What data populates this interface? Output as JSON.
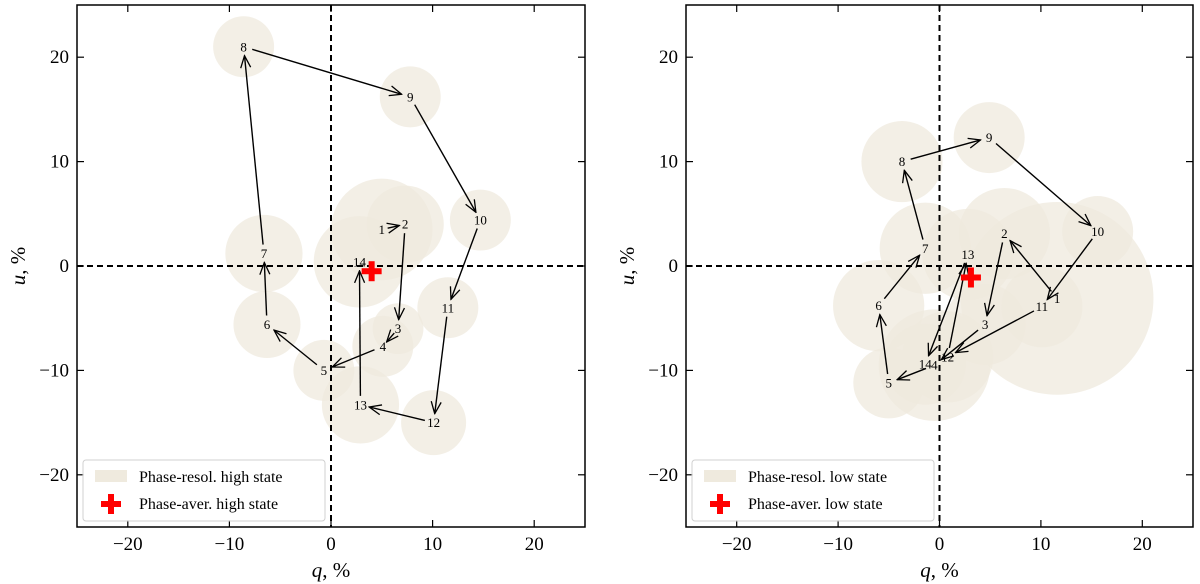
{
  "chart_data": [
    {
      "type": "scatter",
      "xlabel": "q, %",
      "ylabel": "u, %",
      "xlim": [
        -25,
        25
      ],
      "ylim": [
        -25,
        25
      ],
      "xticks": [
        -20,
        -10,
        0,
        10,
        20
      ],
      "yticks": [
        -20,
        -10,
        0,
        10,
        20
      ],
      "reference_lines": [
        "q = 0",
        "u = 0"
      ],
      "legend": {
        "placement": "bottom-left",
        "entries": [
          "Phase-resol. high state",
          "Phase-aver. high state"
        ]
      },
      "series": [
        {
          "name": "Phase-resol. high state",
          "points": [
            {
              "label": "1",
              "q": 5.0,
              "u": 3.5,
              "err": 5.0
            },
            {
              "label": "2",
              "q": 7.3,
              "u": 4.0,
              "err": 3.8
            },
            {
              "label": "3",
              "q": 6.6,
              "u": -6.0,
              "err": 2.5
            },
            {
              "label": "4",
              "q": 5.1,
              "u": -7.7,
              "err": 3.0
            },
            {
              "label": "5",
              "q": -0.7,
              "u": -10.0,
              "err": 3.0
            },
            {
              "label": "6",
              "q": -6.3,
              "u": -5.6,
              "err": 3.3
            },
            {
              "label": "7",
              "q": -6.6,
              "u": 1.2,
              "err": 3.8
            },
            {
              "label": "8",
              "q": -8.6,
              "u": 21.0,
              "err": 3.0
            },
            {
              "label": "9",
              "q": 7.8,
              "u": 16.2,
              "err": 3.0
            },
            {
              "label": "10",
              "q": 14.7,
              "u": 4.4,
              "err": 3.0
            },
            {
              "label": "11",
              "q": 11.5,
              "u": -4.0,
              "err": 3.0
            },
            {
              "label": "12",
              "q": 10.1,
              "u": -15.0,
              "err": 3.2
            },
            {
              "label": "13",
              "q": 2.9,
              "u": -13.3,
              "err": 3.8
            },
            {
              "label": "14",
              "q": 2.8,
              "u": 0.4,
              "err": 4.5
            }
          ]
        },
        {
          "name": "Phase-aver. high state",
          "points": [
            {
              "q": 4.0,
              "u": -0.5
            }
          ]
        }
      ]
    },
    {
      "type": "scatter",
      "xlabel": "q, %",
      "ylabel": "u, %",
      "xlim": [
        -25,
        25
      ],
      "ylim": [
        -25,
        25
      ],
      "xticks": [
        -20,
        -10,
        0,
        10,
        20
      ],
      "yticks": [
        -20,
        -10,
        0,
        10,
        20
      ],
      "reference_lines": [
        "q = 0",
        "u = 0"
      ],
      "legend": {
        "placement": "bottom-left",
        "entries": [
          "Phase-resol. low state",
          "Phase-aver. low state"
        ]
      },
      "series": [
        {
          "name": "Phase-resol. low state",
          "points": [
            {
              "label": "1",
              "q": 11.6,
              "u": -3.1,
              "err": 9.5
            },
            {
              "label": "2",
              "q": 6.4,
              "u": 3.1,
              "err": 4.5
            },
            {
              "label": "3",
              "q": 4.5,
              "u": -5.6,
              "err": 4.0
            },
            {
              "label": "4",
              "q": -0.5,
              "u": -9.5,
              "err": 5.5
            },
            {
              "label": "5",
              "q": -5.0,
              "u": -11.2,
              "err": 3.5
            },
            {
              "label": "6",
              "q": -6.0,
              "u": -3.8,
              "err": 4.5
            },
            {
              "label": "7",
              "q": -1.4,
              "u": 1.7,
              "err": 4.5
            },
            {
              "label": "8",
              "q": -3.7,
              "u": 10.0,
              "err": 4.0
            },
            {
              "label": "9",
              "q": 4.9,
              "u": 12.3,
              "err": 3.5
            },
            {
              "label": "10",
              "q": 15.6,
              "u": 3.3,
              "err": 3.5
            },
            {
              "label": "11",
              "q": 10.1,
              "u": -3.9,
              "err": 4.0
            },
            {
              "label": "12",
              "q": 0.8,
              "u": -8.7,
              "err": 4.5
            },
            {
              "label": "13",
              "q": 2.8,
              "u": 1.1,
              "err": 4.5
            },
            {
              "label": "14",
              "q": -1.4,
              "u": -9.4,
              "err": 4.0
            }
          ]
        },
        {
          "name": "Phase-aver. low state",
          "points": [
            {
              "q": 3.1,
              "u": -1.1
            }
          ]
        }
      ]
    }
  ],
  "colors": {
    "circle_fill": "#efeade",
    "circle_opacity": 0.75,
    "average_marker": "#ff0000",
    "axes": "#000000"
  }
}
